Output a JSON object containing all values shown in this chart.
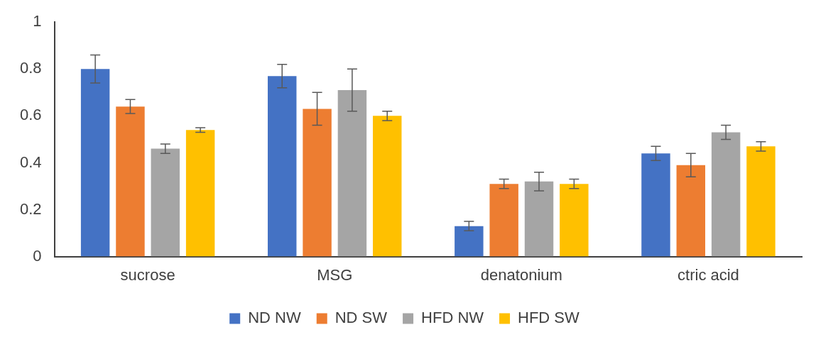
{
  "chart_data": {
    "type": "bar",
    "categories": [
      "sucrose",
      "MSG",
      "denatonium",
      "ctric acid"
    ],
    "series": [
      {
        "name": "ND NW",
        "color": "#4472c4",
        "values": [
          0.8,
          0.77,
          0.13,
          0.44
        ],
        "errors": [
          0.06,
          0.05,
          0.02,
          0.03
        ]
      },
      {
        "name": "ND SW",
        "color": "#ed7d31",
        "values": [
          0.64,
          0.63,
          0.31,
          0.39
        ],
        "errors": [
          0.03,
          0.07,
          0.02,
          0.05
        ]
      },
      {
        "name": "HFD NW",
        "color": "#a5a5a5",
        "values": [
          0.46,
          0.71,
          0.32,
          0.53
        ],
        "errors": [
          0.02,
          0.09,
          0.04,
          0.03
        ]
      },
      {
        "name": "HFD SW",
        "color": "#ffc000",
        "values": [
          0.54,
          0.6,
          0.31,
          0.47
        ],
        "errors": [
          0.01,
          0.02,
          0.02,
          0.02
        ]
      }
    ],
    "ylim": [
      0,
      1
    ],
    "yticks": [
      0,
      0.2,
      0.4,
      0.6,
      0.8,
      1
    ],
    "grid": false,
    "legend": "bottom"
  }
}
